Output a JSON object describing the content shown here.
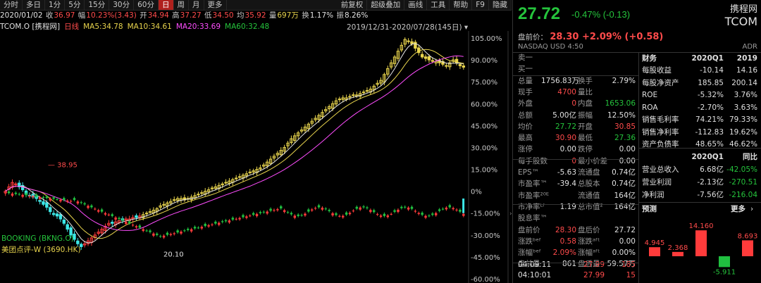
{
  "toolbar": {
    "periods": [
      "分时",
      "多日",
      "1分",
      "5分",
      "15分",
      "30分",
      "60分",
      "日",
      "周",
      "月",
      "更多"
    ],
    "active": "日",
    "tools": [
      "前复权",
      "超级叠加",
      "画线",
      "工具",
      "帮助",
      "F9",
      "隐藏"
    ]
  },
  "infobar": {
    "date": "2020/01/02",
    "close_label": "收",
    "close": "36.97",
    "change_label": "幅",
    "change": "10.23%(3.43)",
    "open_label": "开",
    "open": "34.94",
    "high_label": "高",
    "high": "37.27",
    "low_label": "低",
    "low": "34.50",
    "avg_label": "均",
    "avg": "35.92",
    "volume_label": "量",
    "volume": "697万",
    "turnover_label": "换",
    "turnover": "1.17%",
    "amplitude_label": "振",
    "amplitude": "8.26%"
  },
  "mabar": {
    "symbol": "TCOM.O [携程网]",
    "period": "日线",
    "ma5": "MA5:34.78",
    "ma10": "MA10:34.61",
    "ma20": "MA20:33.69",
    "ma60": "MA60:32.48",
    "range": "2019/12/31-2020/07/28(145日)"
  },
  "chart": {
    "y_axis_ticks": [
      "105.00%",
      "90.00%",
      "75.00%",
      "60.00%",
      "45.00%",
      "30.00%",
      "15.00%",
      "0%",
      "-15.00%",
      "-30.00%",
      "-45.00%",
      "-60.00%"
    ],
    "high_mark": "38.95",
    "low_mark": "20.10",
    "overlays": [
      "BOOKING (BKNG.O)",
      "美团点评-W (3690.HK)"
    ]
  },
  "chart_data": {
    "type": "candlestick",
    "series": [
      {
        "name": "TCOM.O",
        "y_unit": "%",
        "close": [
          0,
          3,
          6,
          5,
          3,
          1,
          -2,
          -3,
          -4,
          -5,
          -7,
          -9,
          -11,
          -14,
          -16,
          -17,
          -19,
          -22,
          -26,
          -30,
          -33,
          -36,
          -38,
          -36,
          -34,
          -32,
          -30,
          -28,
          -26,
          -24,
          -22,
          -22,
          -21,
          -20,
          -20,
          -19,
          -19,
          -18,
          -18,
          -17,
          -16,
          -15,
          -14,
          -13,
          -12,
          -10,
          -9,
          -8,
          -7,
          -6,
          -5,
          -5,
          -6,
          -5,
          -4,
          -3,
          -2,
          -1,
          0,
          1,
          2,
          3,
          4,
          5,
          6,
          7,
          8,
          9,
          10,
          11,
          12,
          13,
          14,
          15,
          16,
          18,
          20,
          22,
          24,
          26,
          28,
          30,
          33,
          36,
          38,
          40,
          42,
          44,
          46,
          48,
          50,
          52,
          54,
          56,
          58,
          60,
          62,
          63,
          64,
          64,
          65,
          66,
          66,
          67,
          68,
          69,
          70,
          72,
          74,
          76,
          80,
          84,
          88,
          92,
          96,
          100,
          104,
          103,
          101,
          98,
          95,
          92,
          91,
          90,
          89,
          89,
          88,
          87,
          86,
          88,
          90,
          88,
          86,
          85
        ]
      },
      {
        "name": "BOOKING (BKNG.O)",
        "y_unit": "%"
      },
      {
        "name": "美团点评-W (3690.HK)",
        "y_unit": "%"
      }
    ],
    "ylim": [
      -60,
      105
    ],
    "high": 38.95,
    "low": 20.1
  },
  "side": {
    "price": "27.72",
    "change": "-0.47% (-0.13)",
    "brand_cn": "携程网",
    "brand_en": "TCOM",
    "pre_label": "盘前价：",
    "pre_value": "28.30 +2.09% (+0.58)",
    "exchange": "NASDAQ  USD  4:50",
    "adr": "ADR",
    "quote_rows": [
      {
        "l1": "卖一",
        "v1": "",
        "l2": "",
        "v2": ""
      },
      {
        "l1": "买一",
        "v1": "",
        "l2": "",
        "v2": ""
      },
      {
        "l1": "总量",
        "v1": "1756.83万",
        "l2": "换手",
        "v2": "2.79%"
      },
      {
        "l1": "现手",
        "v1": "4700",
        "l2": "量比",
        "v2": ""
      },
      {
        "l1": "外盘",
        "v1": "0",
        "l2": "内盘",
        "v2": "1653.06"
      },
      {
        "l1": "总额",
        "v1": "5.00亿",
        "l2": "振幅",
        "v2": "12.50%"
      },
      {
        "l1": "均价",
        "v1": "27.72",
        "l2": "开盘",
        "v2": "30.85"
      },
      {
        "l1": "最高",
        "v1": "30.90",
        "l2": "最低",
        "v2": "27.36"
      },
      {
        "l1": "涨停",
        "v1": "0.00",
        "l2": "跌停",
        "v2": "0.00"
      },
      {
        "l1": "每手股数",
        "v1": "0",
        "l2": "最小价差",
        "v2": "0.00"
      },
      {
        "l1": "EPS™",
        "v1": "-5.63",
        "l2": "流通盘",
        "v2": "0.74亿"
      },
      {
        "l1": "市盈率™",
        "v1": "-39.4",
        "l2": "总股本",
        "v2": "0.74亿"
      },
      {
        "l1": "市盈率²⁰ᴱ",
        "v1": "",
        "l2": "流通值",
        "v2": "164亿"
      },
      {
        "l1": "市净率ᴸᶠ",
        "v1": "1.19",
        "l2": "总市值²",
        "v2": "164亿"
      },
      {
        "l1": "股息率™",
        "v1": "",
        "l2": "",
        "v2": ""
      },
      {
        "l1": "盘前价",
        "v1": "28.30",
        "l2": "盘后价",
        "v2": "27.72"
      },
      {
        "l1": "涨跌ᵇᵉᶠ",
        "v1": "0.58",
        "l2": "涨跌ᵃᶠᵗ",
        "v2": "0.00"
      },
      {
        "l1": "涨幅ᵇᵉᶠ",
        "v1": "2.09%",
        "l2": "涨幅ᵃᶠᵗ",
        "v2": "0.00%"
      },
      {
        "l1": "盘前量",
        "v1": "861",
        "l2": "盘后量",
        "v2": "59.57万"
      }
    ],
    "ticks": [
      {
        "time": "04:09:11",
        "price": "27.99",
        "vol": "185"
      },
      {
        "time": "04:10:01",
        "price": "27.99",
        "vol": "15"
      }
    ],
    "fin_header": {
      "label": "财务",
      "c1": "2020Q1",
      "c2": "2019"
    },
    "fin_rows": [
      {
        "l": "每股收益",
        "a": "-10.14",
        "b": "14.16"
      },
      {
        "l": "每股净资产",
        "a": "185.85",
        "b": "200.14"
      },
      {
        "l": "ROE",
        "a": "-5.32%",
        "b": "3.76%"
      },
      {
        "l": "ROA",
        "a": "-2.70%",
        "b": "3.63%"
      },
      {
        "l": "销售毛利率",
        "a": "74.21%",
        "b": "79.33%"
      },
      {
        "l": "销售净利率",
        "a": "-112.83",
        "b": "19.62%"
      },
      {
        "l": "资产负债率",
        "a": "48.65%",
        "b": "46.62%"
      }
    ],
    "growth_header": {
      "c1": "2020Q1",
      "c2": "同比"
    },
    "growth_rows": [
      {
        "l": "营业总收入",
        "a": "6.68亿",
        "b": "-42.05%"
      },
      {
        "l": "营业利润",
        "a": "-2.13亿",
        "b": "-270.51"
      },
      {
        "l": "净利润",
        "a": "-7.56亿",
        "b": "-216.04"
      }
    ],
    "forecast": {
      "label": "预测",
      "more": "更多",
      "values": [
        4.945,
        2.368,
        14.16,
        -5.911,
        8.693
      ],
      "labels": [
        "4.945",
        "2.368",
        "14.160",
        "-5.911",
        "8.693"
      ]
    }
  }
}
